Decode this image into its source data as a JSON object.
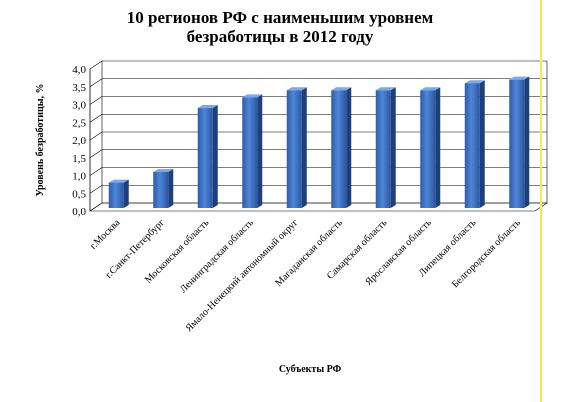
{
  "colors": {
    "bar_front_left": "#2e5ca8",
    "bar_front_mid": "#4f86d8",
    "bar_front_right": "#2b56a0",
    "bar_top": "#7ea8ea",
    "bar_side": "#1d3f7c",
    "grid": "#000000",
    "right_rule": "#f5ec52"
  },
  "chart_data": {
    "type": "bar",
    "title": "10 регионов  РФ с наименьшим  уровнем\nбезработицы в 2012 году",
    "xlabel": "Субъекты РФ",
    "ylabel": "Уровень безработицы, %",
    "ylim": [
      0,
      4
    ],
    "yticks": [
      "0,0",
      "0,5",
      "1,0",
      "1,5",
      "2,0",
      "2,5",
      "3,0",
      "3,5",
      "4,0"
    ],
    "grid": true,
    "legend": "none",
    "categories": [
      "г.Москва",
      "г.Санкт-Петербург",
      "Московская область",
      "Ленинградская область",
      "Ямало-Ненецкий автономный округ",
      "Магаданская область",
      "Самарская область",
      "Ярославская область",
      "Липецкая область",
      "Белгородская область"
    ],
    "values": [
      0.8,
      1.1,
      2.9,
      3.2,
      3.4,
      3.4,
      3.4,
      3.4,
      3.6,
      3.7
    ]
  }
}
